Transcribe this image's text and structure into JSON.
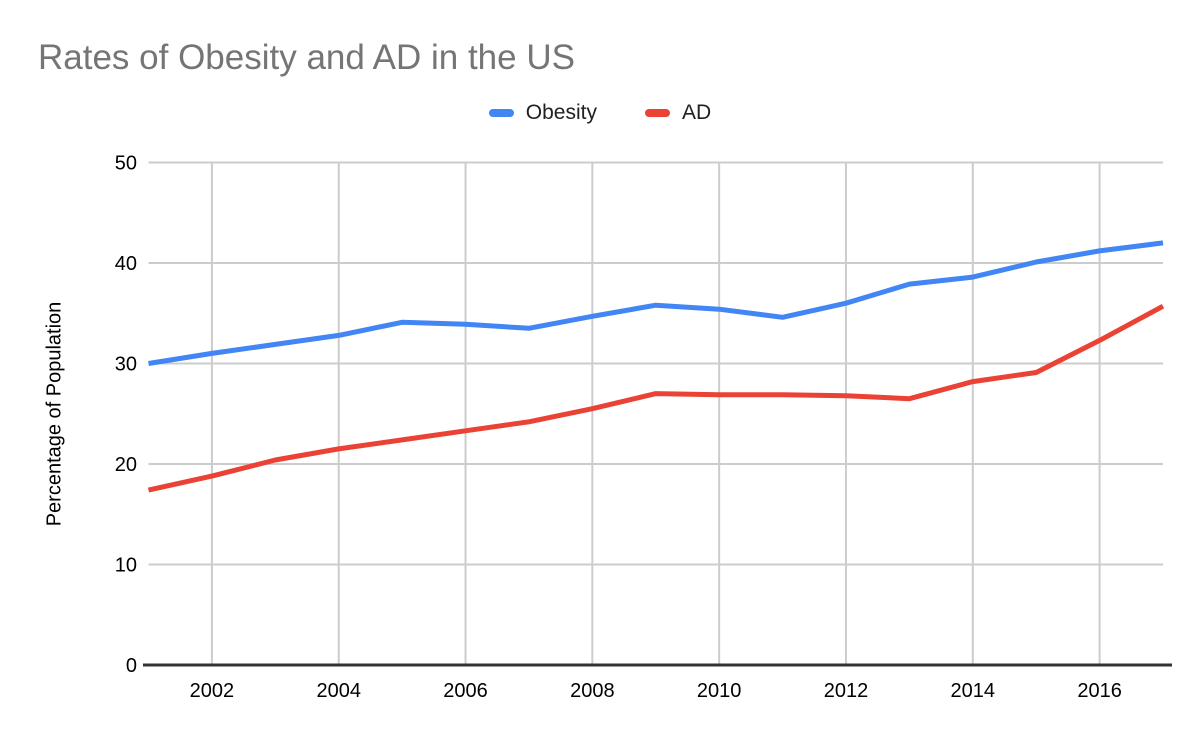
{
  "colors": {
    "title_text": "#757575",
    "legend_text": "#202124",
    "tick_text": "#000000",
    "grid": "#cccccc",
    "axis": "#333333",
    "background": "#ffffff"
  },
  "chart_data": {
    "type": "line",
    "title": "Rates of Obesity and AD in the US",
    "ylabel": "Percentage of Population",
    "x": [
      2001,
      2002,
      2003,
      2004,
      2005,
      2006,
      2007,
      2008,
      2009,
      2010,
      2011,
      2012,
      2013,
      2014,
      2015,
      2016,
      2017
    ],
    "series": [
      {
        "name": "Obesity",
        "color": "#4285f4",
        "values": [
          30.0,
          31.0,
          31.9,
          32.8,
          34.1,
          33.9,
          33.5,
          34.7,
          35.8,
          35.4,
          34.6,
          36.0,
          37.9,
          38.6,
          40.1,
          41.2,
          42.0
        ]
      },
      {
        "name": "AD",
        "color": "#ea4335",
        "values": [
          17.4,
          18.8,
          20.4,
          21.5,
          22.4,
          23.3,
          24.2,
          25.5,
          27.0,
          26.9,
          26.9,
          26.8,
          26.5,
          28.2,
          29.1,
          32.3,
          35.7
        ]
      }
    ],
    "xlim": [
      2001,
      2017
    ],
    "ylim": [
      0,
      50
    ],
    "xticks": [
      2002,
      2004,
      2006,
      2008,
      2010,
      2012,
      2014,
      2016
    ],
    "yticks": [
      0,
      10,
      20,
      30,
      40,
      50
    ],
    "grid": true,
    "legend_position": "top"
  }
}
